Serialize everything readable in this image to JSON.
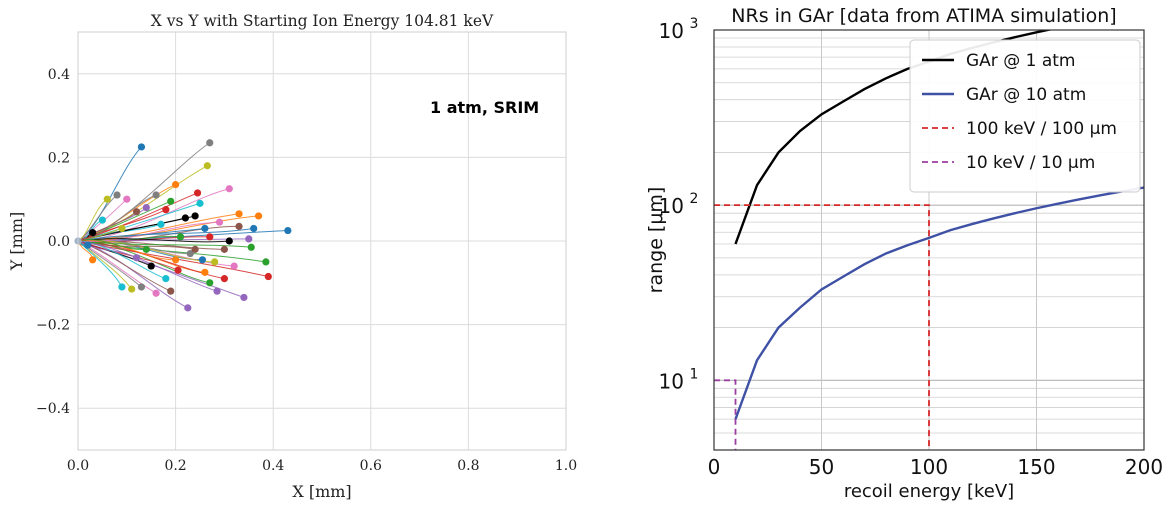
{
  "chart_data": [
    {
      "type": "line",
      "title": "X vs Y with Starting Ion Energy 104.81 keV",
      "xlabel": "X [mm]",
      "ylabel": "Y [mm]",
      "xlim": [
        0.0,
        1.0
      ],
      "ylim": [
        -0.5,
        0.5
      ],
      "xticks": [
        "0.0",
        "0.2",
        "0.4",
        "0.6",
        "0.8",
        "1.0"
      ],
      "yticks": [
        "−0.4",
        "−0.2",
        "0.0",
        "0.2",
        "0.4"
      ],
      "xtick_values": [
        0.0,
        0.2,
        0.4,
        0.6,
        0.8,
        1.0
      ],
      "ytick_values": [
        -0.4,
        -0.2,
        0.0,
        0.2,
        0.4
      ],
      "annotation": "1 atm, SRIM",
      "grid": true,
      "origin": [
        0.0,
        0.0
      ],
      "colors": [
        "#1f77b4",
        "#ff7f0e",
        "#2ca02c",
        "#d62728",
        "#9467bd",
        "#8c564b",
        "#e377c2",
        "#7f7f7f",
        "#bcbd22",
        "#17becf",
        "#000000"
      ],
      "track_endpoints": [
        [
          0.43,
          0.025
        ],
        [
          0.37,
          0.06
        ],
        [
          0.385,
          -0.05
        ],
        [
          0.39,
          -0.085
        ],
        [
          0.34,
          -0.135
        ],
        [
          0.33,
          0.035
        ],
        [
          0.31,
          0.125
        ],
        [
          0.27,
          0.235
        ],
        [
          0.265,
          0.18
        ],
        [
          0.25,
          0.09
        ],
        [
          0.24,
          0.06
        ],
        [
          0.255,
          -0.045
        ],
        [
          0.26,
          -0.075
        ],
        [
          0.27,
          -0.1
        ],
        [
          0.3,
          -0.09
        ],
        [
          0.225,
          -0.16
        ],
        [
          0.19,
          -0.12
        ],
        [
          0.16,
          -0.125
        ],
        [
          0.13,
          -0.11
        ],
        [
          0.11,
          -0.115
        ],
        [
          0.09,
          -0.11
        ],
        [
          0.15,
          -0.06
        ],
        [
          0.13,
          0.225
        ],
        [
          0.2,
          0.135
        ],
        [
          0.19,
          0.095
        ],
        [
          0.18,
          0.075
        ],
        [
          0.14,
          0.08
        ],
        [
          0.12,
          0.07
        ],
        [
          0.1,
          0.1
        ],
        [
          0.08,
          0.11
        ],
        [
          0.06,
          0.1
        ],
        [
          0.05,
          0.05
        ],
        [
          0.03,
          0.02
        ],
        [
          0.02,
          -0.01
        ],
        [
          0.03,
          -0.045
        ],
        [
          0.21,
          0.01
        ],
        [
          0.27,
          0.01
        ],
        [
          0.35,
          0.005
        ],
        [
          0.3,
          -0.02
        ],
        [
          0.32,
          -0.06
        ],
        [
          0.23,
          -0.03
        ],
        [
          0.28,
          -0.05
        ],
        [
          0.17,
          0.04
        ],
        [
          0.22,
          0.055
        ],
        [
          0.26,
          0.03
        ],
        [
          0.33,
          0.065
        ],
        [
          0.355,
          -0.015
        ],
        [
          0.205,
          -0.07
        ],
        [
          0.12,
          -0.04
        ],
        [
          0.24,
          -0.02
        ],
        [
          0.29,
          0.045
        ],
        [
          0.16,
          0.11
        ],
        [
          0.09,
          0.03
        ],
        [
          0.18,
          -0.09
        ],
        [
          0.31,
          0.0
        ],
        [
          0.36,
          0.03
        ],
        [
          0.2,
          -0.045
        ],
        [
          0.14,
          -0.02
        ],
        [
          0.245,
          0.115
        ],
        [
          0.285,
          -0.12
        ]
      ]
    },
    {
      "type": "line",
      "title": "NRs in GAr [data from ATIMA simulation]",
      "xlabel": "recoil energy [keV]",
      "ylabel": "range [μm]",
      "xlim": [
        0,
        200
      ],
      "ylim": [
        4,
        1000
      ],
      "yscale": "log",
      "xticks": [
        "0",
        "50",
        "100",
        "150",
        "200"
      ],
      "xtick_values": [
        0,
        50,
        100,
        150,
        200
      ],
      "ytick_values": [
        10,
        100,
        1000
      ],
      "ytick_base": "10",
      "ytick_exponents": [
        "1",
        "2",
        "3"
      ],
      "grid": true,
      "legend_position": "top-right",
      "series": [
        {
          "name": "GAr @ 1 atm",
          "color": "#000000",
          "dash": "solid",
          "x": [
            10,
            20,
            30,
            40,
            50,
            60,
            70,
            80,
            90,
            100,
            110,
            120,
            130,
            140,
            150,
            160,
            170
          ],
          "y": [
            60,
            130,
            200,
            265,
            330,
            390,
            460,
            530,
            600,
            660,
            730,
            790,
            850,
            910,
            970,
            1030,
            1100
          ]
        },
        {
          "name": "GAr @ 10 atm",
          "color": "#3f51a5",
          "dash": "solid",
          "x": [
            10,
            20,
            30,
            40,
            50,
            60,
            70,
            80,
            90,
            100,
            110,
            120,
            130,
            140,
            150,
            160,
            170,
            180,
            190,
            200
          ],
          "y": [
            6,
            13,
            20,
            26,
            33,
            39,
            46,
            53,
            59,
            65,
            72,
            78,
            84,
            90,
            96,
            102,
            108,
            114,
            120,
            126
          ]
        },
        {
          "name": "100 keV / 100 μm",
          "color": "#d62728",
          "dash": "dashed",
          "x": [
            0,
            100,
            100
          ],
          "y": [
            100,
            100,
            4
          ]
        },
        {
          "name": "10 keV / 10 μm",
          "color": "#9b3ea1",
          "dash": "dashed",
          "x": [
            0,
            10,
            10
          ],
          "y": [
            10,
            10,
            4
          ]
        }
      ]
    }
  ]
}
